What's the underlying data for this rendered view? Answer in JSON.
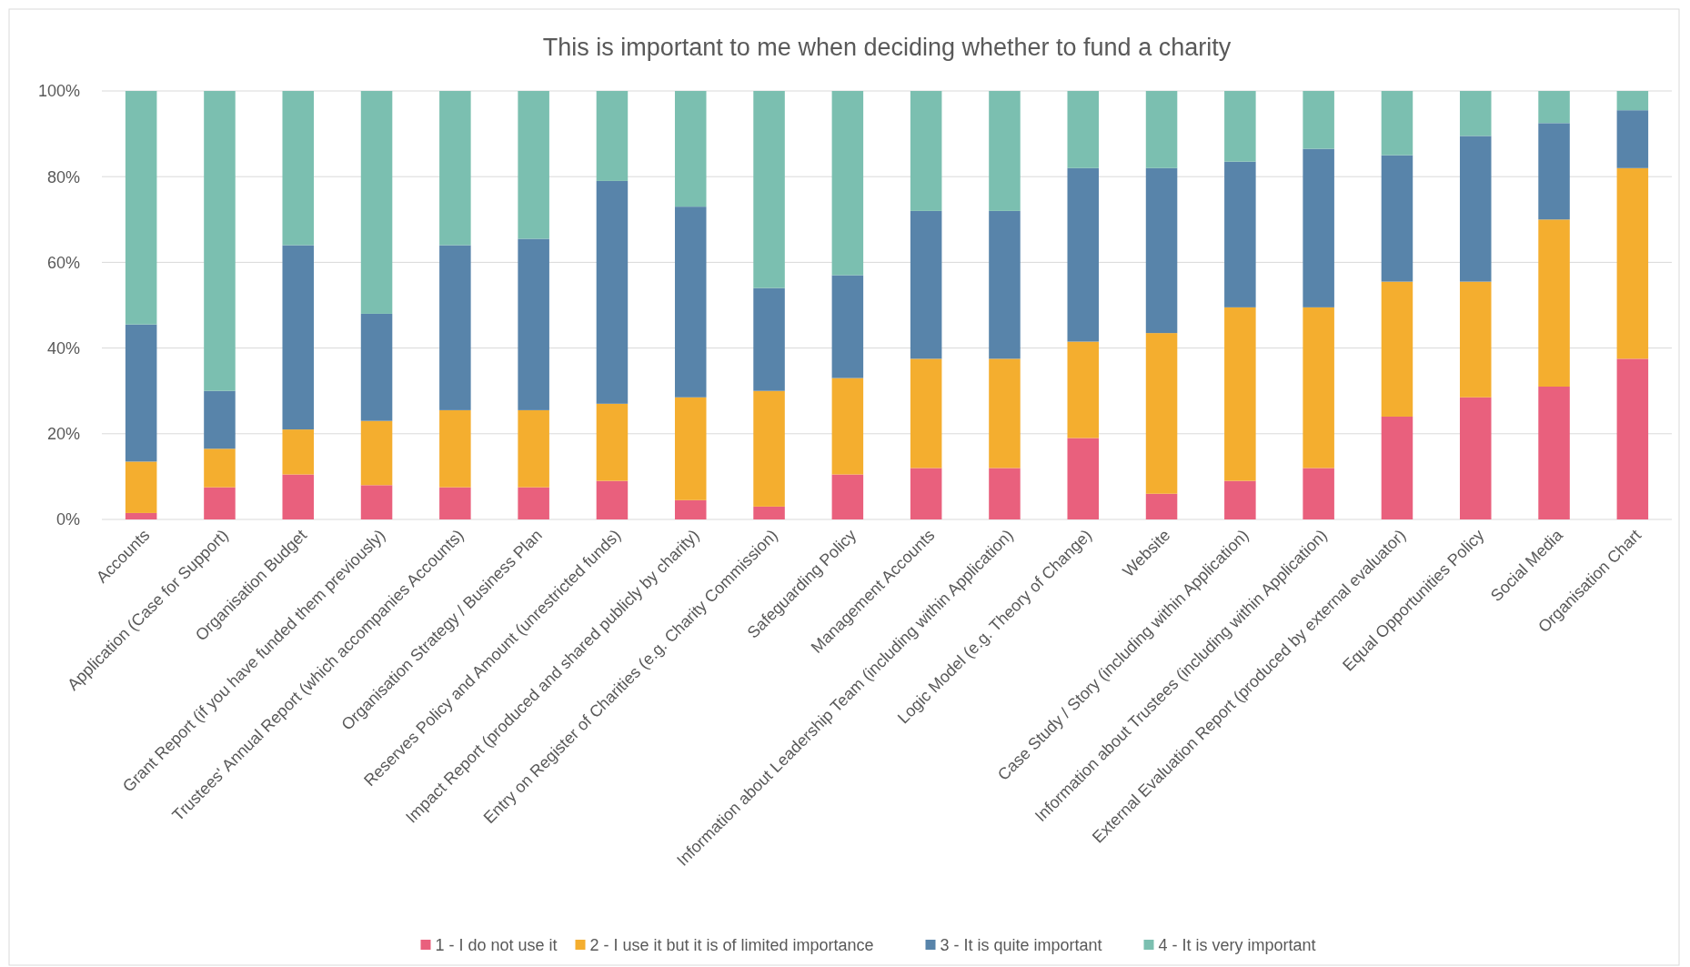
{
  "chart_data": {
    "type": "bar",
    "title": "This is important to me when deciding whether to fund a charity",
    "stacked": true,
    "grid": "y",
    "legend": "bottom",
    "categories": [
      "Accounts",
      "Application (Case for Support)",
      "Organisation Budget",
      "Grant Report (if you have funded them previously)",
      "Trustees' Annual Report (which accompanies Accounts)",
      "Organisation Strategy / Business Plan",
      "Reserves Policy and Amount (unrestricted funds)",
      "Impact Report (produced and shared publicly by charity)",
      "Entry on Register of Charities (e.g. Charity Commission)",
      "Safeguarding Policy",
      "Management Accounts",
      "Information about Leadership Team (including within Application)",
      "Logic Model (e.g. Theory of Change)",
      "Website",
      "Case Study / Story (including within Application)",
      "Information about Trustees (including within Application)",
      "External Evaluation Report (produced by external evaluator)",
      "Equal Opportunities Policy",
      "Social Media",
      "Organisation Chart"
    ],
    "ylim": [
      0,
      100
    ],
    "yticks": [
      {
        "value": 0,
        "label": "0%"
      },
      {
        "value": 20,
        "label": "20%"
      },
      {
        "value": 40,
        "label": "40%"
      },
      {
        "value": 60,
        "label": "60%"
      },
      {
        "value": 80,
        "label": "80%"
      },
      {
        "value": 100,
        "label": "100%"
      }
    ],
    "series": [
      {
        "name": "1 - I do not use it",
        "color": "#e9607d",
        "values": [
          1.5,
          7.5,
          10.5,
          8,
          7.5,
          7.5,
          9,
          4.5,
          3,
          10.5,
          12,
          12,
          19,
          6,
          9,
          12,
          24,
          28.5,
          31,
          37.5
        ]
      },
      {
        "name": "2 - I use it but it is of limited importance",
        "color": "#f4ae2f",
        "values": [
          12,
          9,
          10.5,
          15,
          18,
          18,
          18,
          24,
          27,
          22.5,
          25.5,
          25.5,
          22.5,
          37.5,
          40.5,
          37.5,
          31.5,
          27,
          39,
          44.5
        ]
      },
      {
        "name": "3 - It is quite important",
        "color": "#5884aa",
        "values": [
          32,
          13.5,
          43,
          25,
          38.5,
          40,
          52,
          44.5,
          24,
          24,
          34.5,
          34.5,
          40.5,
          38.5,
          34,
          37,
          29.5,
          34,
          22.5,
          13.5
        ]
      },
      {
        "name": "4 - It is very important",
        "color": "#7bbfb0",
        "values": [
          54.5,
          70,
          36,
          52,
          36,
          34.5,
          21,
          27,
          46,
          43,
          28,
          28,
          18,
          18,
          16.5,
          13.5,
          15,
          10.5,
          7.5,
          4.5
        ]
      }
    ]
  }
}
